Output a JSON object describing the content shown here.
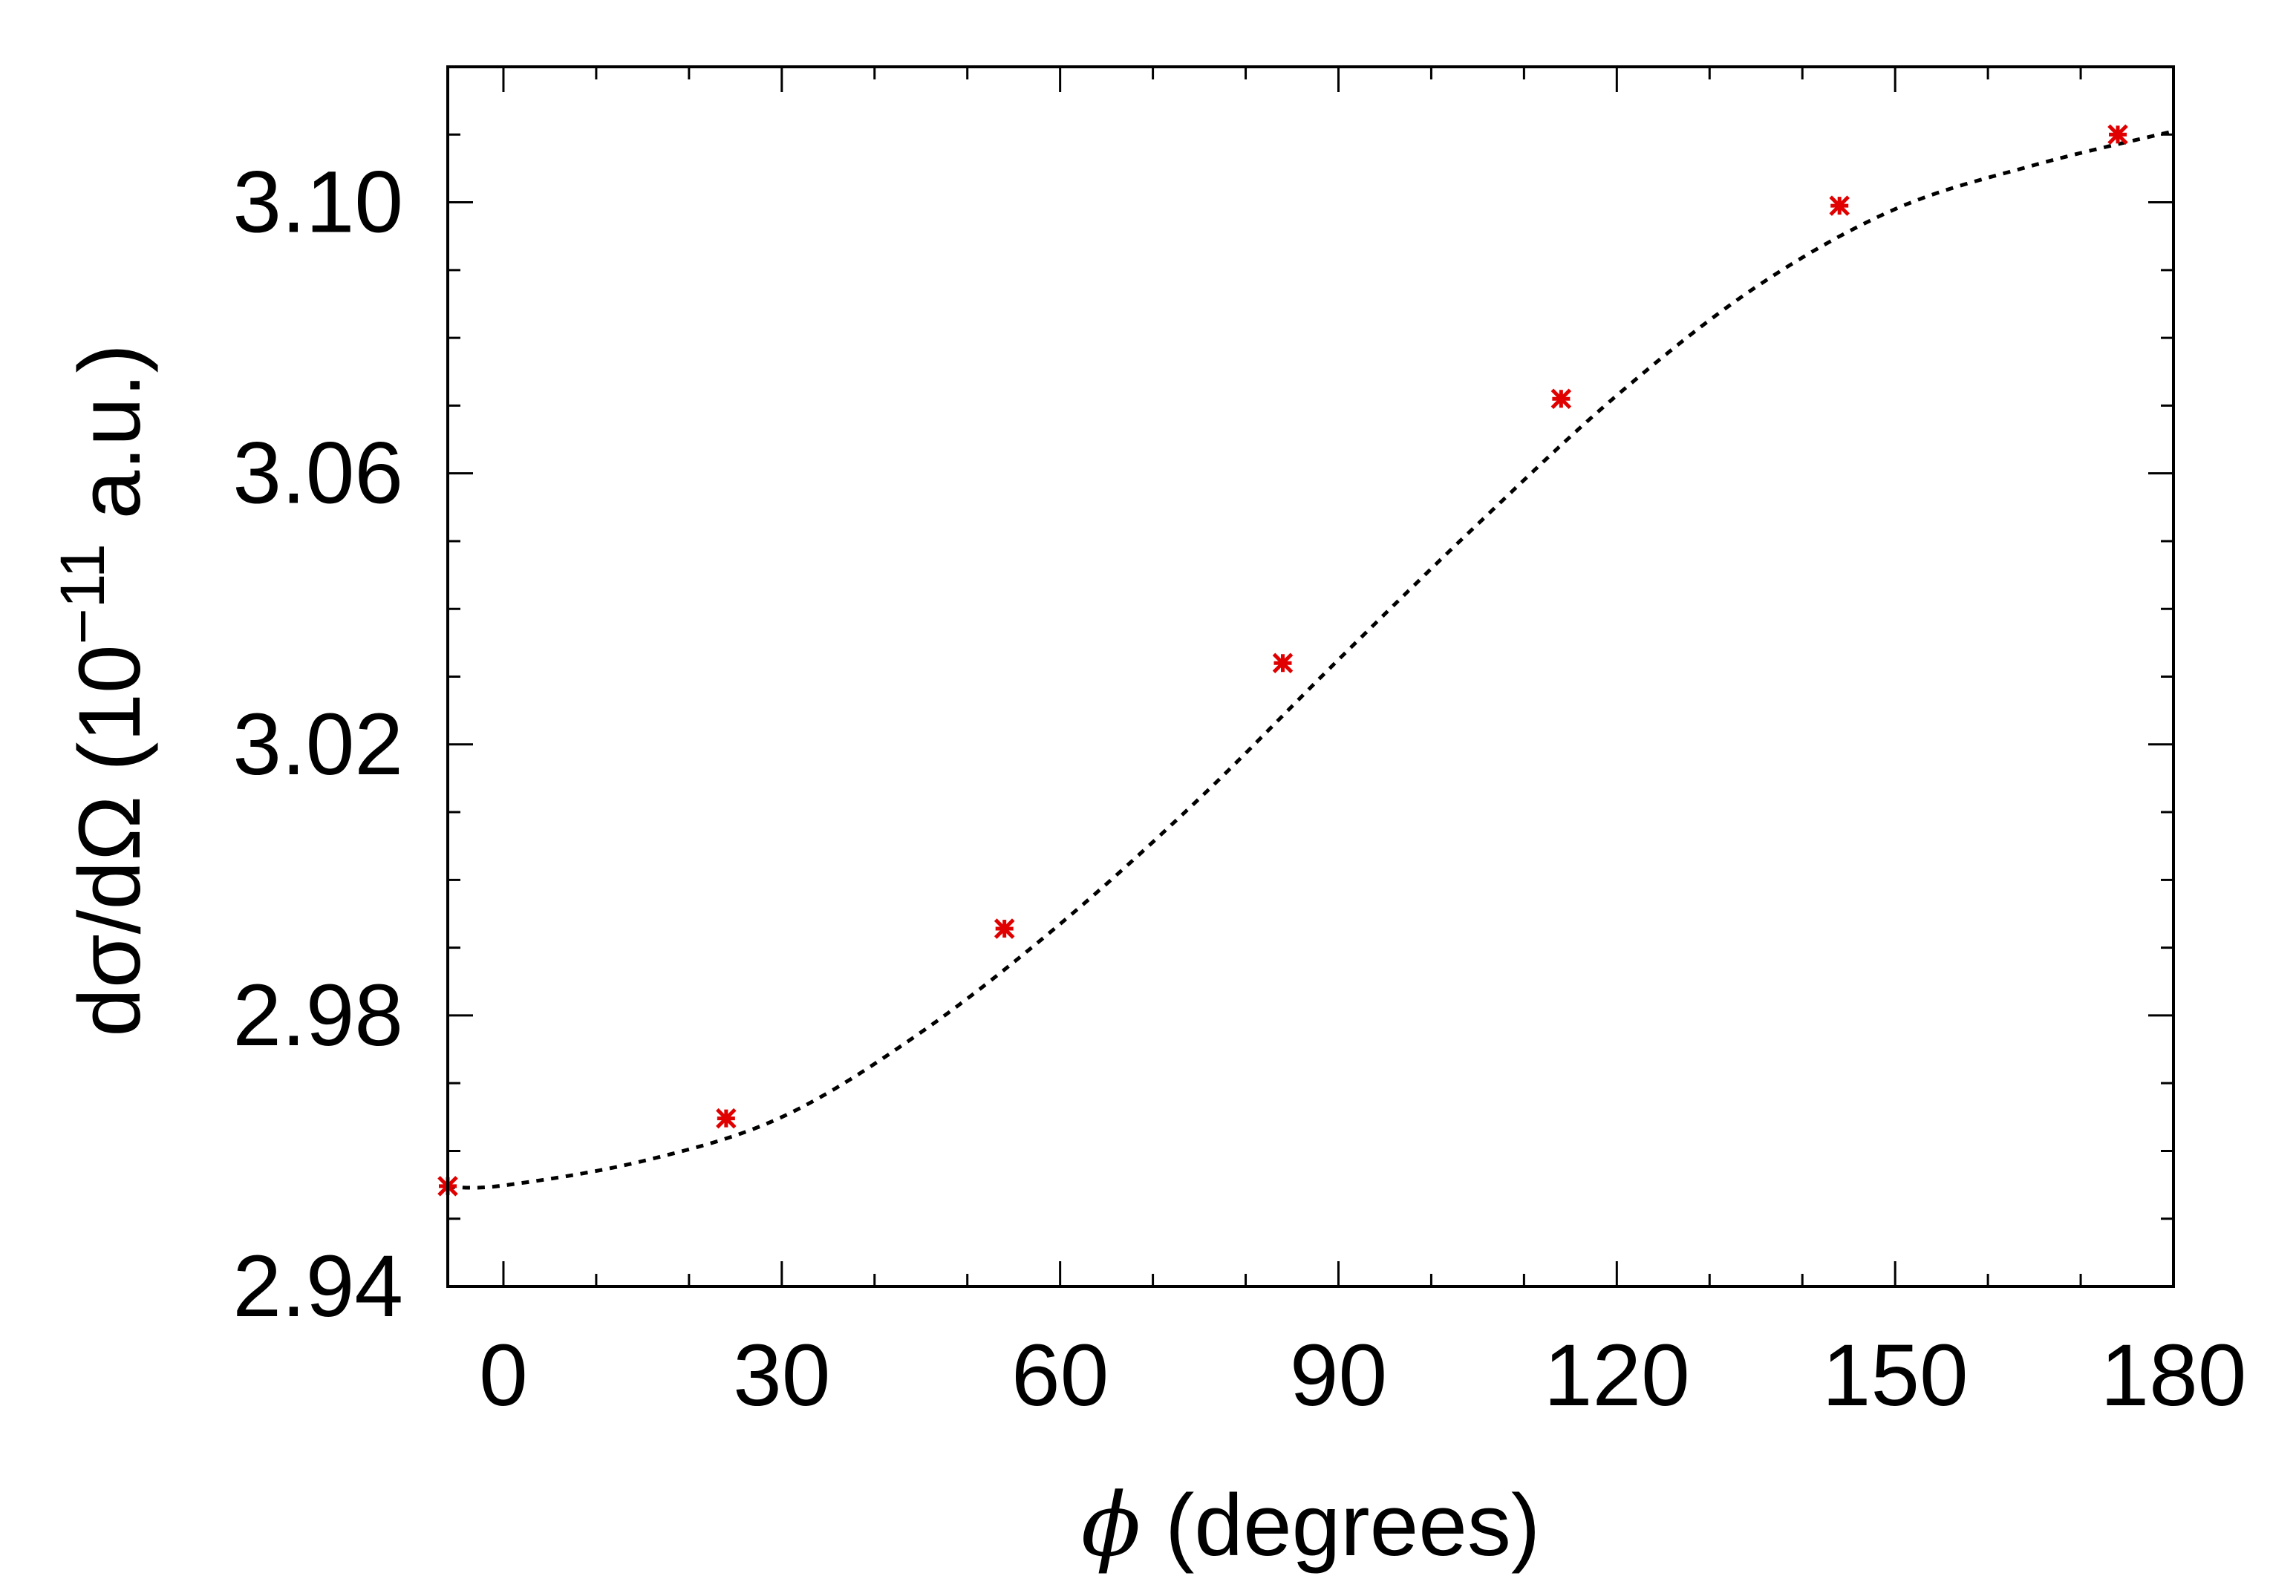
{
  "chart_data": {
    "type": "line",
    "title": "",
    "xlabel": {
      "symbol": "ϕ",
      "text": " (degrees)"
    },
    "ylabel": {
      "main": "dσ/dΩ (10",
      "exponent": "−11",
      "unit": " a.u.)"
    },
    "xlim": [
      -6,
      180
    ],
    "ylim": [
      2.94,
      3.12
    ],
    "x_ticks": [
      0,
      30,
      60,
      90,
      120,
      150,
      180
    ],
    "x_tick_labels": [
      "0",
      "30",
      "60",
      "90",
      "120",
      "150",
      "180"
    ],
    "y_ticks": [
      2.94,
      2.98,
      3.02,
      3.06,
      3.1
    ],
    "y_tick_labels": [
      "2.94",
      "2.98",
      "3.02",
      "3.06",
      "3.10"
    ],
    "grid": false,
    "legend": "none",
    "series": [
      {
        "kind": "line",
        "style": "dotted",
        "color": "#000000",
        "x": [
          -6,
          0,
          15,
          30,
          45,
          60,
          75,
          90,
          105,
          120,
          135,
          150,
          165,
          180
        ],
        "y": [
          2.9547,
          2.9549,
          2.9585,
          2.965,
          2.9775,
          2.9935,
          3.012,
          3.0325,
          3.0525,
          3.0715,
          3.0875,
          3.099,
          3.1055,
          3.1105
        ]
      },
      {
        "kind": "scatter",
        "marker": "asterisk",
        "color": "#e00000",
        "x": [
          -6,
          24,
          54,
          84,
          114,
          144,
          174
        ],
        "y": [
          2.9548,
          2.9648,
          2.9928,
          3.032,
          3.071,
          3.0995,
          3.11
        ]
      }
    ]
  }
}
